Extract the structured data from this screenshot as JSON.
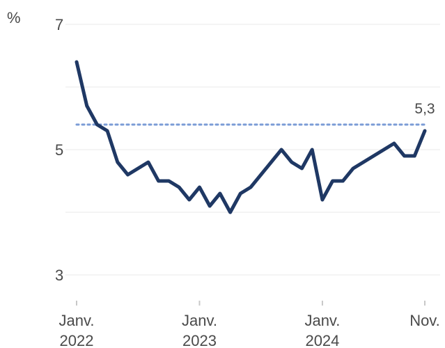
{
  "chart_data": {
    "type": "line",
    "ylabel": "%",
    "ylim": [
      2.6,
      7.1
    ],
    "yticks": [
      3,
      5,
      7
    ],
    "ytick_labels": [
      "3",
      "5",
      "7"
    ],
    "grid": true,
    "x_ticks": [
      {
        "month_index": 0,
        "line1": "Janv.",
        "line2": "2022"
      },
      {
        "month_index": 12,
        "line1": "Janv.",
        "line2": "2023"
      },
      {
        "month_index": 24,
        "line1": "Janv.",
        "line2": "2024"
      },
      {
        "month_index": 34,
        "line1": "Nov.",
        "line2": ""
      }
    ],
    "series": [
      {
        "color": "#1f3864",
        "values": [
          6.4,
          5.7,
          5.4,
          5.3,
          4.8,
          4.6,
          4.7,
          4.8,
          4.5,
          4.5,
          4.4,
          4.2,
          4.4,
          4.1,
          4.3,
          4.0,
          4.3,
          4.4,
          4.6,
          4.8,
          5.0,
          4.8,
          4.7,
          5.0,
          4.2,
          4.5,
          4.5,
          4.7,
          4.8,
          4.9,
          5.0,
          5.1,
          4.9,
          4.9,
          5.3
        ]
      }
    ],
    "reference_line": {
      "value": 5.4,
      "style": "dotted",
      "color": "#7b9cd6"
    },
    "end_label": "5,3",
    "gridline_color": "#e9e9e9",
    "axis_color": "#c8c8c8"
  }
}
